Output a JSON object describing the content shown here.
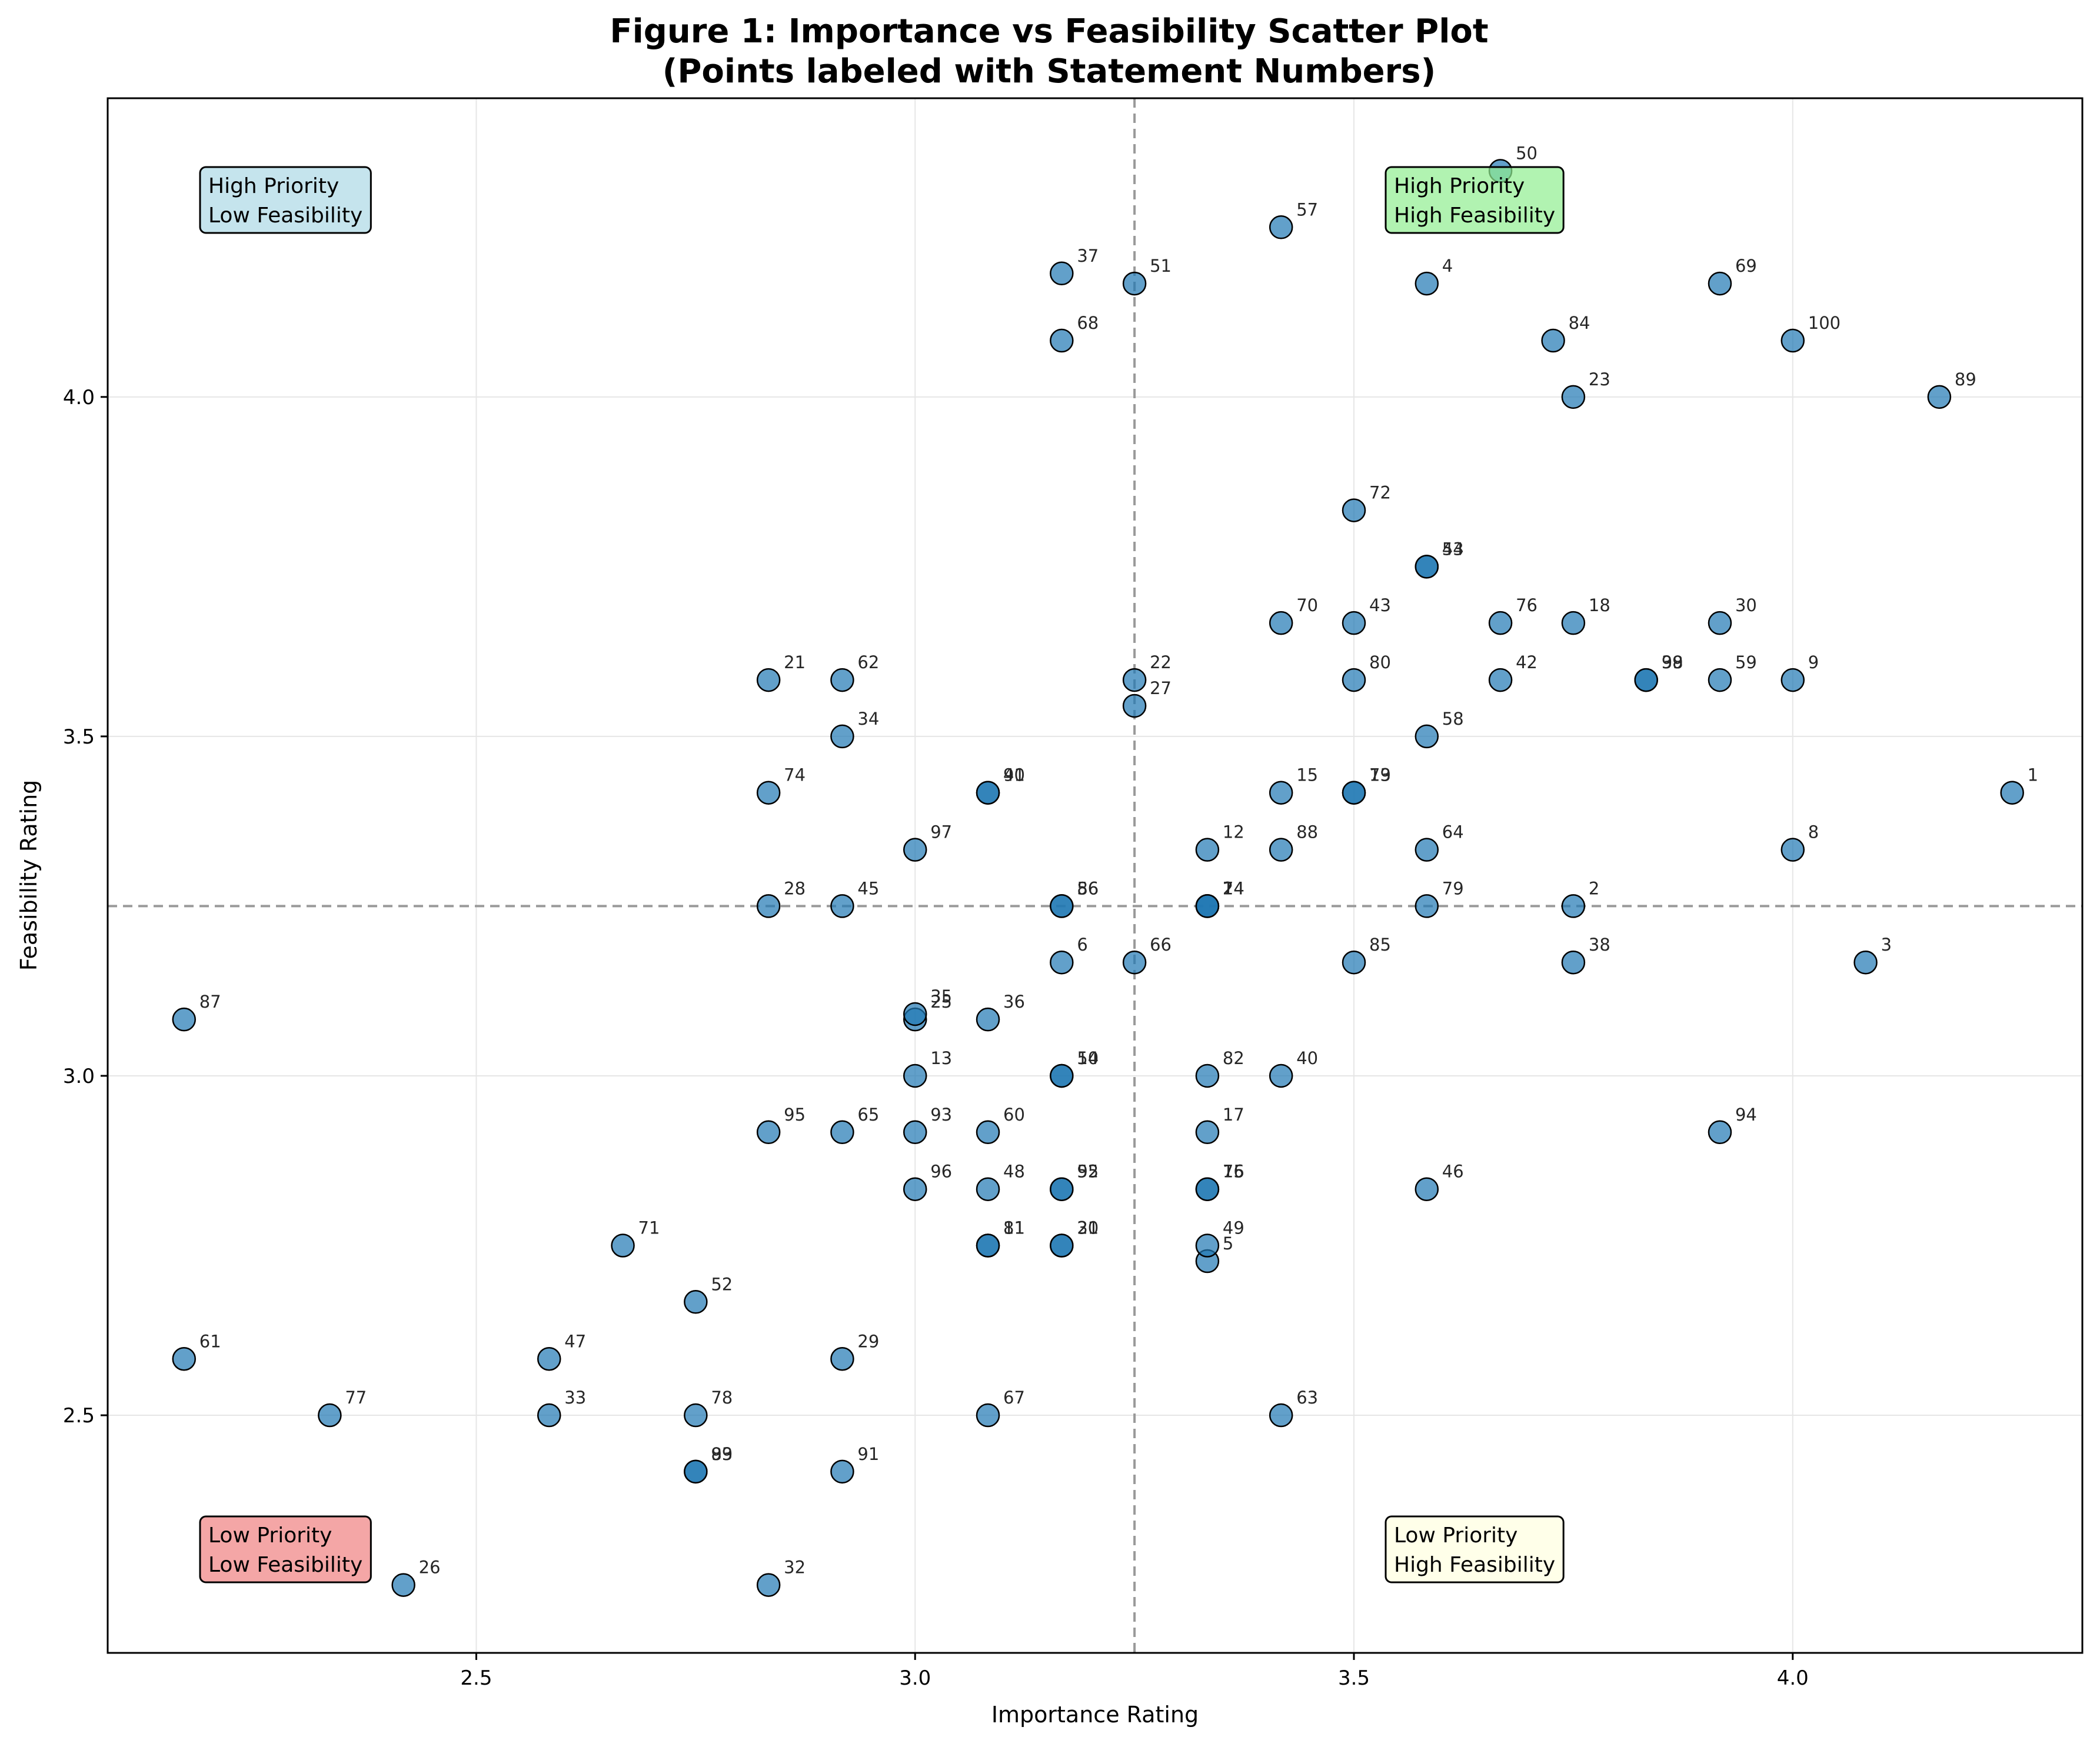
{
  "chart_data": {
    "type": "scatter",
    "title": "Figure 1: Importance vs Feasibility Scatter Plot",
    "subtitle": "(Points labeled with Statement Numbers)",
    "xlabel": "Importance Rating",
    "ylabel": "Feasibility Rating",
    "xlim": [
      2.08,
      4.33
    ],
    "ylim": [
      2.15,
      4.44
    ],
    "xticks": [
      2.5,
      3.0,
      3.5,
      4.0
    ],
    "yticks": [
      2.5,
      3.0,
      3.5,
      4.0
    ],
    "xtick_labels": [
      "2.5",
      "3.0",
      "3.5",
      "4.0"
    ],
    "ytick_labels": [
      "2.5",
      "3.0",
      "3.5",
      "4.0"
    ],
    "grid": true,
    "reference_lines": {
      "x": 3.25,
      "y": 3.25
    },
    "point_color": "#1f77b4",
    "quadrants": [
      {
        "line1": "High Priority",
        "line2": "Low Feasibility",
        "color": "#add8e6",
        "position": "top-left"
      },
      {
        "line1": "High Priority",
        "line2": "High Feasibility",
        "color": "#90ee90",
        "position": "top-right"
      },
      {
        "line1": "Low Priority",
        "line2": "Low Feasibility",
        "color": "#f08080",
        "position": "bottom-left"
      },
      {
        "line1": "Low Priority",
        "line2": "High Feasibility",
        "color": "#ffffe0",
        "position": "bottom-right"
      }
    ],
    "points": [
      {
        "label": "1",
        "x": 4.25,
        "y": 3.417
      },
      {
        "label": "2",
        "x": 3.75,
        "y": 3.25
      },
      {
        "label": "3",
        "x": 4.083,
        "y": 3.167
      },
      {
        "label": "4",
        "x": 3.583,
        "y": 4.167
      },
      {
        "label": "5",
        "x": 3.333,
        "y": 2.727
      },
      {
        "label": "6",
        "x": 3.167,
        "y": 3.167
      },
      {
        "label": "7",
        "x": 3.333,
        "y": 3.25
      },
      {
        "label": "8",
        "x": 4.0,
        "y": 3.333
      },
      {
        "label": "9",
        "x": 4.0,
        "y": 3.583
      },
      {
        "label": "10",
        "x": 3.167,
        "y": 3.0
      },
      {
        "label": "11",
        "x": 3.083,
        "y": 2.75
      },
      {
        "label": "12",
        "x": 3.333,
        "y": 3.333
      },
      {
        "label": "13",
        "x": 3.0,
        "y": 3.0
      },
      {
        "label": "14",
        "x": 3.333,
        "y": 3.25
      },
      {
        "label": "15",
        "x": 3.417,
        "y": 3.417
      },
      {
        "label": "16",
        "x": 3.333,
        "y": 2.833
      },
      {
        "label": "17",
        "x": 3.333,
        "y": 2.917
      },
      {
        "label": "18",
        "x": 3.75,
        "y": 3.667
      },
      {
        "label": "19",
        "x": 3.5,
        "y": 3.417
      },
      {
        "label": "20",
        "x": 3.167,
        "y": 2.75
      },
      {
        "label": "21",
        "x": 2.833,
        "y": 3.583
      },
      {
        "label": "22",
        "x": 3.25,
        "y": 3.583
      },
      {
        "label": "23",
        "x": 3.75,
        "y": 4.0
      },
      {
        "label": "24",
        "x": 3.333,
        "y": 3.25
      },
      {
        "label": "25",
        "x": 3.0,
        "y": 3.083
      },
      {
        "label": "26",
        "x": 2.417,
        "y": 2.25
      },
      {
        "label": "27",
        "x": 3.25,
        "y": 3.545
      },
      {
        "label": "28",
        "x": 2.833,
        "y": 3.25
      },
      {
        "label": "29",
        "x": 2.917,
        "y": 2.583
      },
      {
        "label": "30",
        "x": 3.917,
        "y": 3.667
      },
      {
        "label": "31",
        "x": 3.167,
        "y": 2.75
      },
      {
        "label": "32",
        "x": 2.833,
        "y": 2.25
      },
      {
        "label": "33",
        "x": 2.583,
        "y": 2.5
      },
      {
        "label": "34",
        "x": 2.917,
        "y": 3.5
      },
      {
        "label": "35",
        "x": 3.0,
        "y": 3.091
      },
      {
        "label": "36",
        "x": 3.083,
        "y": 3.083
      },
      {
        "label": "37",
        "x": 3.167,
        "y": 4.182
      },
      {
        "label": "38",
        "x": 3.75,
        "y": 3.167
      },
      {
        "label": "39",
        "x": 3.833,
        "y": 3.583
      },
      {
        "label": "40",
        "x": 3.417,
        "y": 3.0
      },
      {
        "label": "41",
        "x": 3.083,
        "y": 3.417
      },
      {
        "label": "42",
        "x": 3.667,
        "y": 3.583
      },
      {
        "label": "43",
        "x": 3.5,
        "y": 3.667
      },
      {
        "label": "44",
        "x": 3.583,
        "y": 3.75
      },
      {
        "label": "45",
        "x": 2.917,
        "y": 3.25
      },
      {
        "label": "46",
        "x": 3.583,
        "y": 2.833
      },
      {
        "label": "47",
        "x": 2.583,
        "y": 2.583
      },
      {
        "label": "48",
        "x": 3.083,
        "y": 2.833
      },
      {
        "label": "49",
        "x": 3.333,
        "y": 2.75
      },
      {
        "label": "50",
        "x": 3.667,
        "y": 4.333
      },
      {
        "label": "51",
        "x": 3.25,
        "y": 4.167
      },
      {
        "label": "52",
        "x": 2.75,
        "y": 2.667
      },
      {
        "label": "53",
        "x": 3.583,
        "y": 3.75
      },
      {
        "label": "54",
        "x": 3.167,
        "y": 3.0
      },
      {
        "label": "55",
        "x": 3.167,
        "y": 2.833
      },
      {
        "label": "56",
        "x": 3.167,
        "y": 3.25
      },
      {
        "label": "57",
        "x": 3.417,
        "y": 4.25
      },
      {
        "label": "58",
        "x": 3.583,
        "y": 3.5
      },
      {
        "label": "59",
        "x": 3.917,
        "y": 3.583
      },
      {
        "label": "60",
        "x": 3.083,
        "y": 2.917
      },
      {
        "label": "61",
        "x": 2.167,
        "y": 2.583
      },
      {
        "label": "62",
        "x": 2.917,
        "y": 3.583
      },
      {
        "label": "63",
        "x": 3.417,
        "y": 2.5
      },
      {
        "label": "64",
        "x": 3.583,
        "y": 3.333
      },
      {
        "label": "65",
        "x": 2.917,
        "y": 2.917
      },
      {
        "label": "66",
        "x": 3.25,
        "y": 3.167
      },
      {
        "label": "67",
        "x": 3.083,
        "y": 2.5
      },
      {
        "label": "68",
        "x": 3.167,
        "y": 4.083
      },
      {
        "label": "69",
        "x": 3.917,
        "y": 4.167
      },
      {
        "label": "70",
        "x": 3.417,
        "y": 3.667
      },
      {
        "label": "71",
        "x": 2.667,
        "y": 2.75
      },
      {
        "label": "72",
        "x": 3.5,
        "y": 3.833
      },
      {
        "label": "73",
        "x": 3.5,
        "y": 3.417
      },
      {
        "label": "74",
        "x": 2.833,
        "y": 3.417
      },
      {
        "label": "75",
        "x": 3.333,
        "y": 2.833
      },
      {
        "label": "76",
        "x": 3.667,
        "y": 3.667
      },
      {
        "label": "77",
        "x": 2.333,
        "y": 2.5
      },
      {
        "label": "78",
        "x": 2.75,
        "y": 2.5
      },
      {
        "label": "79",
        "x": 3.583,
        "y": 3.25
      },
      {
        "label": "80",
        "x": 3.5,
        "y": 3.583
      },
      {
        "label": "81",
        "x": 3.083,
        "y": 2.75
      },
      {
        "label": "82",
        "x": 3.333,
        "y": 3.0
      },
      {
        "label": "83",
        "x": 2.75,
        "y": 2.417
      },
      {
        "label": "84",
        "x": 3.727,
        "y": 4.083
      },
      {
        "label": "85",
        "x": 3.5,
        "y": 3.167
      },
      {
        "label": "86",
        "x": 3.167,
        "y": 3.25
      },
      {
        "label": "87",
        "x": 2.167,
        "y": 3.083
      },
      {
        "label": "88",
        "x": 3.417,
        "y": 3.333
      },
      {
        "label": "89",
        "x": 4.167,
        "y": 4.0
      },
      {
        "label": "90",
        "x": 3.083,
        "y": 3.417
      },
      {
        "label": "91",
        "x": 2.917,
        "y": 2.417
      },
      {
        "label": "92",
        "x": 3.167,
        "y": 2.833
      },
      {
        "label": "93",
        "x": 3.0,
        "y": 2.917
      },
      {
        "label": "94",
        "x": 3.917,
        "y": 2.917
      },
      {
        "label": "95",
        "x": 2.833,
        "y": 2.917
      },
      {
        "label": "96",
        "x": 3.0,
        "y": 2.833
      },
      {
        "label": "97",
        "x": 3.0,
        "y": 3.333
      },
      {
        "label": "98",
        "x": 3.833,
        "y": 3.583
      },
      {
        "label": "99",
        "x": 2.75,
        "y": 2.417
      },
      {
        "label": "100",
        "x": 4.0,
        "y": 4.083
      }
    ]
  }
}
